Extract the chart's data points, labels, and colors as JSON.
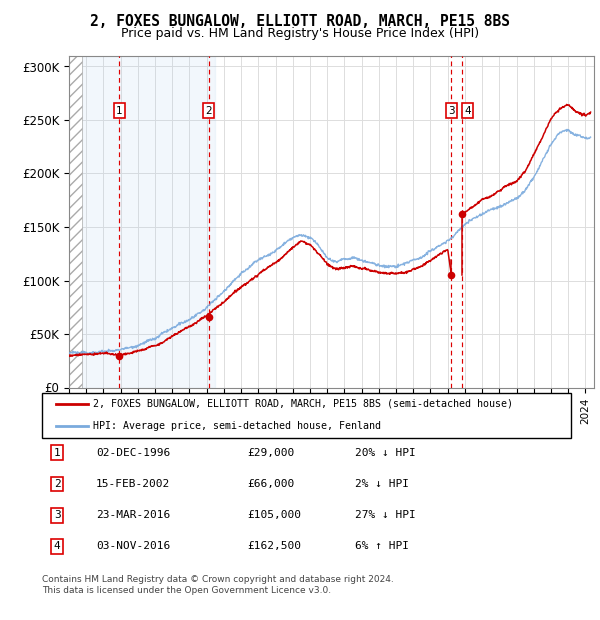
{
  "title_line1": "2, FOXES BUNGALOW, ELLIOTT ROAD, MARCH, PE15 8BS",
  "title_line2": "Price paid vs. HM Land Registry's House Price Index (HPI)",
  "xlim_start": 1994.0,
  "xlim_end": 2024.5,
  "ylim_min": 0,
  "ylim_max": 310000,
  "yticks": [
    0,
    50000,
    100000,
    150000,
    200000,
    250000,
    300000
  ],
  "ytick_labels": [
    "£0",
    "£50K",
    "£100K",
    "£150K",
    "£200K",
    "£250K",
    "£300K"
  ],
  "purchases": [
    {
      "label": "1",
      "date_num": 1996.92,
      "price": 29000
    },
    {
      "label": "2",
      "date_num": 2002.12,
      "price": 66000
    },
    {
      "label": "3",
      "date_num": 2016.22,
      "price": 105000
    },
    {
      "label": "4",
      "date_num": 2016.84,
      "price": 162500
    }
  ],
  "hpi_color": "#7aaadd",
  "sale_color": "#cc0000",
  "legend_house": "2, FOXES BUNGALOW, ELLIOTT ROAD, MARCH, PE15 8BS (semi-detached house)",
  "legend_hpi": "HPI: Average price, semi-detached house, Fenland",
  "table_rows": [
    {
      "num": "1",
      "date": "02-DEC-1996",
      "price": "£29,000",
      "hpi": "20% ↓ HPI"
    },
    {
      "num": "2",
      "date": "15-FEB-2002",
      "price": "£66,000",
      "hpi": "2% ↓ HPI"
    },
    {
      "num": "3",
      "date": "23-MAR-2016",
      "price": "£105,000",
      "hpi": "27% ↓ HPI"
    },
    {
      "num": "4",
      "date": "03-NOV-2016",
      "price": "£162,500",
      "hpi": "6% ↑ HPI"
    }
  ],
  "footnote": "Contains HM Land Registry data © Crown copyright and database right 2024.\nThis data is licensed under the Open Government Licence v3.0.",
  "hatch_end": 1994.75,
  "shaded_region_start": 1994.75,
  "shaded_region_end": 2002.5,
  "hpi_knots": [
    [
      1994.0,
      32000
    ],
    [
      1995.0,
      34000
    ],
    [
      1996.0,
      35500
    ],
    [
      1997.0,
      38000
    ],
    [
      1998.0,
      42000
    ],
    [
      1999.0,
      48000
    ],
    [
      2000.0,
      57000
    ],
    [
      2001.0,
      66000
    ],
    [
      2002.0,
      76000
    ],
    [
      2003.0,
      92000
    ],
    [
      2004.0,
      108000
    ],
    [
      2005.0,
      120000
    ],
    [
      2006.0,
      130000
    ],
    [
      2007.0,
      143000
    ],
    [
      2007.5,
      147000
    ],
    [
      2008.0,
      145000
    ],
    [
      2008.5,
      138000
    ],
    [
      2009.0,
      126000
    ],
    [
      2009.5,
      122000
    ],
    [
      2010.0,
      124000
    ],
    [
      2010.5,
      126000
    ],
    [
      2011.0,
      124000
    ],
    [
      2011.5,
      122000
    ],
    [
      2012.0,
      120000
    ],
    [
      2012.5,
      119000
    ],
    [
      2013.0,
      120000
    ],
    [
      2013.5,
      122000
    ],
    [
      2014.0,
      125000
    ],
    [
      2014.5,
      128000
    ],
    [
      2015.0,
      133000
    ],
    [
      2015.5,
      138000
    ],
    [
      2016.0,
      142000
    ],
    [
      2016.5,
      148000
    ],
    [
      2017.0,
      155000
    ],
    [
      2017.5,
      160000
    ],
    [
      2018.0,
      165000
    ],
    [
      2018.5,
      168000
    ],
    [
      2019.0,
      172000
    ],
    [
      2019.5,
      175000
    ],
    [
      2020.0,
      178000
    ],
    [
      2020.5,
      185000
    ],
    [
      2021.0,
      198000
    ],
    [
      2021.5,
      213000
    ],
    [
      2022.0,
      228000
    ],
    [
      2022.5,
      238000
    ],
    [
      2023.0,
      240000
    ],
    [
      2023.5,
      235000
    ],
    [
      2024.0,
      233000
    ],
    [
      2024.3,
      234000
    ]
  ],
  "house_knots": [
    [
      1994.0,
      29500
    ],
    [
      1995.0,
      30500
    ],
    [
      1996.0,
      31000
    ],
    [
      1996.92,
      29000
    ],
    [
      1997.5,
      30500
    ],
    [
      1998.0,
      33000
    ],
    [
      1999.0,
      38000
    ],
    [
      2000.0,
      46000
    ],
    [
      2001.0,
      56000
    ],
    [
      2002.12,
      66000
    ],
    [
      2003.0,
      76000
    ],
    [
      2004.0,
      92000
    ],
    [
      2005.0,
      103000
    ],
    [
      2006.0,
      115000
    ],
    [
      2007.0,
      130000
    ],
    [
      2007.5,
      135000
    ],
    [
      2008.0,
      132000
    ],
    [
      2008.5,
      124000
    ],
    [
      2009.0,
      114000
    ],
    [
      2009.5,
      110000
    ],
    [
      2010.0,
      112000
    ],
    [
      2010.5,
      114000
    ],
    [
      2011.0,
      112000
    ],
    [
      2011.5,
      110000
    ],
    [
      2012.0,
      108000
    ],
    [
      2012.5,
      107000
    ],
    [
      2013.0,
      108000
    ],
    [
      2013.5,
      110000
    ],
    [
      2014.0,
      113000
    ],
    [
      2014.5,
      116000
    ],
    [
      2015.0,
      121000
    ],
    [
      2015.5,
      126000
    ],
    [
      2016.0,
      130000
    ],
    [
      2016.22,
      105000
    ],
    [
      2016.84,
      162500
    ],
    [
      2017.0,
      165000
    ],
    [
      2017.5,
      170000
    ],
    [
      2018.0,
      176000
    ],
    [
      2018.5,
      180000
    ],
    [
      2019.0,
      185000
    ],
    [
      2019.5,
      190000
    ],
    [
      2020.0,
      193000
    ],
    [
      2020.5,
      202000
    ],
    [
      2021.0,
      218000
    ],
    [
      2021.5,
      235000
    ],
    [
      2022.0,
      252000
    ],
    [
      2022.5,
      262000
    ],
    [
      2023.0,
      265000
    ],
    [
      2023.5,
      258000
    ],
    [
      2024.0,
      255000
    ],
    [
      2024.3,
      257000
    ]
  ]
}
